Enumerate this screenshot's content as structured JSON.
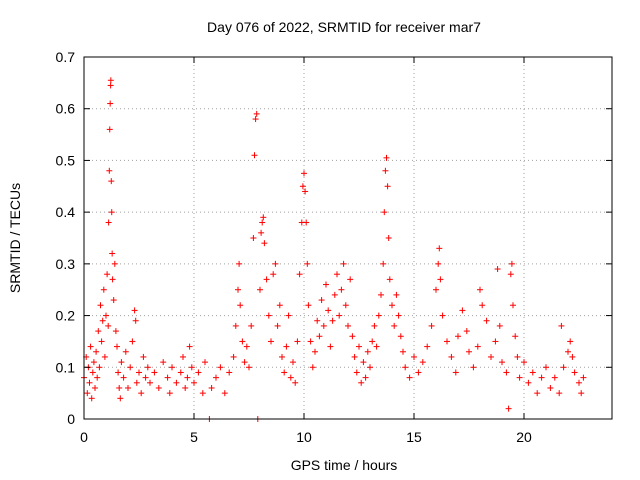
{
  "chart_data": {
    "type": "scatter",
    "title": "Day 076 of 2022, SRMTID for receiver mar7",
    "xlabel": "GPS time / hours",
    "ylabel": "SRMTID / TECUs",
    "xlim": [
      0,
      24
    ],
    "ylim": [
      0,
      0.7
    ],
    "xticks": [
      "0",
      "5",
      "10",
      "15",
      "20"
    ],
    "yticks": [
      "0",
      "0.1",
      "0.2",
      "0.3",
      "0.4",
      "0.5",
      "0.6",
      "0.7"
    ],
    "grid": true,
    "marker": "plus",
    "color": "#ff0000",
    "series": [
      {
        "name": "SRMTID",
        "points": [
          [
            0.0,
            0.08
          ],
          [
            0.1,
            0.12
          ],
          [
            0.15,
            0.05
          ],
          [
            0.2,
            0.1
          ],
          [
            0.25,
            0.07
          ],
          [
            0.3,
            0.14
          ],
          [
            0.35,
            0.04
          ],
          [
            0.4,
            0.09
          ],
          [
            0.45,
            0.11
          ],
          [
            0.5,
            0.06
          ],
          [
            0.55,
            0.13
          ],
          [
            0.6,
            0.08
          ],
          [
            0.65,
            0.17
          ],
          [
            0.7,
            0.1
          ],
          [
            0.75,
            0.22
          ],
          [
            0.8,
            0.15
          ],
          [
            0.85,
            0.19
          ],
          [
            0.9,
            0.25
          ],
          [
            0.95,
            0.12
          ],
          [
            1.0,
            0.2
          ],
          [
            1.05,
            0.28
          ],
          [
            1.1,
            0.18
          ],
          [
            1.12,
            0.38
          ],
          [
            1.15,
            0.48
          ],
          [
            1.17,
            0.56
          ],
          [
            1.19,
            0.61
          ],
          [
            1.21,
            0.645
          ],
          [
            1.22,
            0.655
          ],
          [
            1.24,
            0.46
          ],
          [
            1.26,
            0.4
          ],
          [
            1.28,
            0.32
          ],
          [
            1.3,
            0.27
          ],
          [
            1.35,
            0.23
          ],
          [
            1.4,
            0.3
          ],
          [
            1.45,
            0.17
          ],
          [
            1.5,
            0.14
          ],
          [
            1.55,
            0.09
          ],
          [
            1.6,
            0.06
          ],
          [
            1.65,
            0.04
          ],
          [
            1.7,
            0.11
          ],
          [
            1.8,
            0.08
          ],
          [
            1.9,
            0.13
          ],
          [
            2.0,
            0.06
          ],
          [
            2.1,
            0.1
          ],
          [
            2.2,
            0.15
          ],
          [
            2.3,
            0.21
          ],
          [
            2.35,
            0.19
          ],
          [
            2.4,
            0.07
          ],
          [
            2.5,
            0.09
          ],
          [
            2.6,
            0.05
          ],
          [
            2.7,
            0.12
          ],
          [
            2.8,
            0.08
          ],
          [
            2.9,
            0.1
          ],
          [
            3.0,
            0.07
          ],
          [
            3.2,
            0.09
          ],
          [
            3.4,
            0.06
          ],
          [
            3.6,
            0.11
          ],
          [
            3.8,
            0.08
          ],
          [
            3.9,
            0.05
          ],
          [
            4.0,
            0.1
          ],
          [
            4.2,
            0.07
          ],
          [
            4.4,
            0.09
          ],
          [
            4.5,
            0.12
          ],
          [
            4.6,
            0.06
          ],
          [
            4.7,
            0.08
          ],
          [
            4.8,
            0.14
          ],
          [
            4.9,
            0.1
          ],
          [
            5.0,
            0.07
          ],
          [
            5.2,
            0.09
          ],
          [
            5.4,
            0.05
          ],
          [
            5.5,
            0.11
          ],
          [
            5.7,
            0.0
          ],
          [
            5.8,
            0.06
          ],
          [
            6.0,
            0.08
          ],
          [
            6.2,
            0.1
          ],
          [
            6.4,
            0.05
          ],
          [
            6.6,
            0.09
          ],
          [
            6.8,
            0.12
          ],
          [
            6.9,
            0.18
          ],
          [
            7.0,
            0.25
          ],
          [
            7.05,
            0.3
          ],
          [
            7.1,
            0.22
          ],
          [
            7.2,
            0.15
          ],
          [
            7.3,
            0.11
          ],
          [
            7.4,
            0.14
          ],
          [
            7.5,
            0.1
          ],
          [
            7.6,
            0.18
          ],
          [
            7.7,
            0.35
          ],
          [
            7.75,
            0.51
          ],
          [
            7.8,
            0.58
          ],
          [
            7.85,
            0.59
          ],
          [
            7.9,
            0.0
          ],
          [
            8.0,
            0.25
          ],
          [
            8.05,
            0.36
          ],
          [
            8.1,
            0.38
          ],
          [
            8.15,
            0.39
          ],
          [
            8.2,
            0.34
          ],
          [
            8.3,
            0.27
          ],
          [
            8.4,
            0.2
          ],
          [
            8.5,
            0.15
          ],
          [
            8.6,
            0.28
          ],
          [
            8.7,
            0.3
          ],
          [
            8.8,
            0.18
          ],
          [
            8.9,
            0.22
          ],
          [
            9.0,
            0.12
          ],
          [
            9.1,
            0.09
          ],
          [
            9.2,
            0.14
          ],
          [
            9.3,
            0.2
          ],
          [
            9.4,
            0.08
          ],
          [
            9.5,
            0.11
          ],
          [
            9.6,
            0.07
          ],
          [
            9.7,
            0.15
          ],
          [
            9.8,
            0.28
          ],
          [
            9.9,
            0.38
          ],
          [
            9.95,
            0.45
          ],
          [
            10.0,
            0.475
          ],
          [
            10.05,
            0.44
          ],
          [
            10.1,
            0.38
          ],
          [
            10.15,
            0.3
          ],
          [
            10.2,
            0.22
          ],
          [
            10.3,
            0.15
          ],
          [
            10.4,
            0.1
          ],
          [
            10.5,
            0.13
          ],
          [
            10.6,
            0.19
          ],
          [
            10.7,
            0.16
          ],
          [
            10.8,
            0.23
          ],
          [
            10.9,
            0.18
          ],
          [
            11.0,
            0.26
          ],
          [
            11.1,
            0.21
          ],
          [
            11.2,
            0.14
          ],
          [
            11.3,
            0.19
          ],
          [
            11.4,
            0.24
          ],
          [
            11.5,
            0.28
          ],
          [
            11.6,
            0.2
          ],
          [
            11.7,
            0.25
          ],
          [
            11.8,
            0.3
          ],
          [
            11.9,
            0.22
          ],
          [
            12.0,
            0.18
          ],
          [
            12.1,
            0.27
          ],
          [
            12.2,
            0.16
          ],
          [
            12.3,
            0.12
          ],
          [
            12.4,
            0.09
          ],
          [
            12.5,
            0.14
          ],
          [
            12.6,
            0.07
          ],
          [
            12.7,
            0.11
          ],
          [
            12.8,
            0.08
          ],
          [
            12.9,
            0.13
          ],
          [
            13.0,
            0.1
          ],
          [
            13.1,
            0.15
          ],
          [
            13.2,
            0.18
          ],
          [
            13.3,
            0.14
          ],
          [
            13.4,
            0.2
          ],
          [
            13.5,
            0.24
          ],
          [
            13.6,
            0.3
          ],
          [
            13.65,
            0.4
          ],
          [
            13.7,
            0.48
          ],
          [
            13.75,
            0.505
          ],
          [
            13.8,
            0.45
          ],
          [
            13.85,
            0.35
          ],
          [
            13.9,
            0.27
          ],
          [
            14.0,
            0.22
          ],
          [
            14.1,
            0.18
          ],
          [
            14.2,
            0.24
          ],
          [
            14.3,
            0.2
          ],
          [
            14.4,
            0.16
          ],
          [
            14.5,
            0.13
          ],
          [
            14.6,
            0.1
          ],
          [
            14.8,
            0.08
          ],
          [
            15.0,
            0.12
          ],
          [
            15.2,
            0.09
          ],
          [
            15.4,
            0.11
          ],
          [
            15.6,
            0.14
          ],
          [
            15.8,
            0.18
          ],
          [
            16.0,
            0.25
          ],
          [
            16.1,
            0.3
          ],
          [
            16.15,
            0.33
          ],
          [
            16.2,
            0.27
          ],
          [
            16.3,
            0.2
          ],
          [
            16.5,
            0.15
          ],
          [
            16.7,
            0.12
          ],
          [
            16.9,
            0.09
          ],
          [
            17.0,
            0.16
          ],
          [
            17.2,
            0.21
          ],
          [
            17.4,
            0.17
          ],
          [
            17.5,
            0.13
          ],
          [
            17.7,
            0.1
          ],
          [
            17.9,
            0.14
          ],
          [
            18.0,
            0.25
          ],
          [
            18.1,
            0.22
          ],
          [
            18.3,
            0.19
          ],
          [
            18.5,
            0.12
          ],
          [
            18.7,
            0.15
          ],
          [
            18.8,
            0.29
          ],
          [
            18.9,
            0.18
          ],
          [
            19.0,
            0.11
          ],
          [
            19.2,
            0.09
          ],
          [
            19.3,
            0.02
          ],
          [
            19.4,
            0.28
          ],
          [
            19.45,
            0.3
          ],
          [
            19.5,
            0.22
          ],
          [
            19.6,
            0.16
          ],
          [
            19.7,
            0.12
          ],
          [
            19.8,
            0.08
          ],
          [
            20.0,
            0.11
          ],
          [
            20.2,
            0.07
          ],
          [
            20.4,
            0.09
          ],
          [
            20.6,
            0.05
          ],
          [
            20.8,
            0.08
          ],
          [
            21.0,
            0.1
          ],
          [
            21.2,
            0.06
          ],
          [
            21.4,
            0.08
          ],
          [
            21.6,
            0.05
          ],
          [
            21.7,
            0.18
          ],
          [
            21.8,
            0.1
          ],
          [
            22.0,
            0.13
          ],
          [
            22.1,
            0.15
          ],
          [
            22.2,
            0.12
          ],
          [
            22.3,
            0.09
          ],
          [
            22.5,
            0.07
          ],
          [
            22.6,
            0.05
          ],
          [
            22.7,
            0.08
          ]
        ]
      }
    ]
  }
}
